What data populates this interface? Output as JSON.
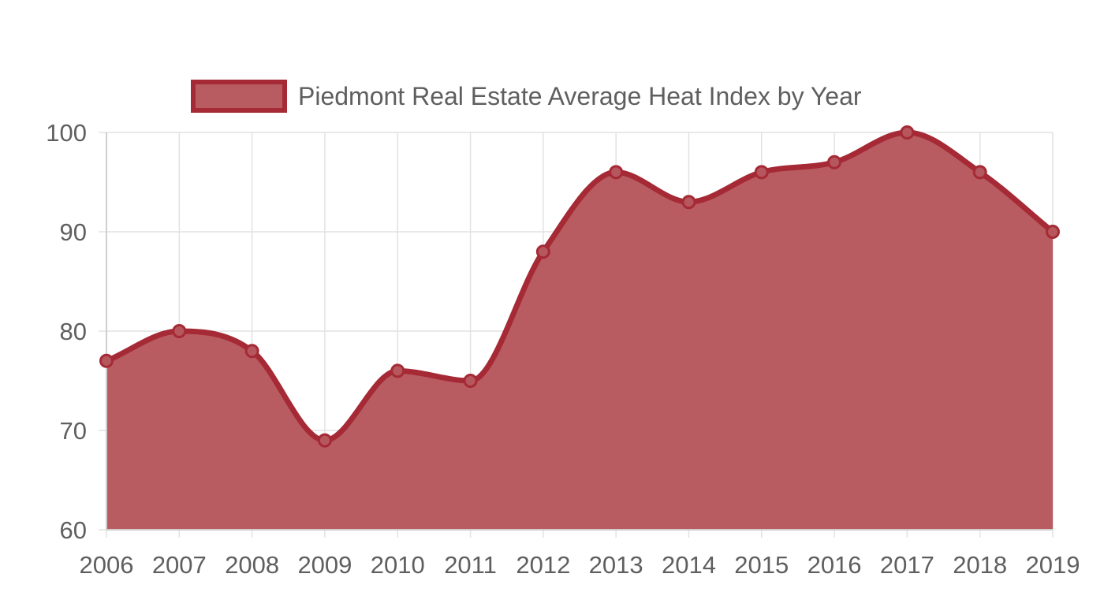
{
  "chart_data": {
    "type": "area",
    "x": [
      "2006",
      "2007",
      "2008",
      "2009",
      "2010",
      "2011",
      "2012",
      "2013",
      "2014",
      "2015",
      "2016",
      "2017",
      "2018",
      "2019"
    ],
    "series": [
      {
        "name": "Piedmont Real Estate Average Heat Index by Year",
        "values": [
          77,
          80,
          78,
          69,
          76,
          75,
          88,
          96,
          93,
          96,
          97,
          100,
          96,
          90
        ]
      }
    ],
    "ylim": [
      60,
      100
    ],
    "y_ticks": [
      "60",
      "70",
      "80",
      "90",
      "100"
    ],
    "grid": true,
    "legend": "top-center",
    "colors": {
      "line": "#a52a35",
      "fill": "#b85c61",
      "point_fill": "#b6575d"
    }
  }
}
